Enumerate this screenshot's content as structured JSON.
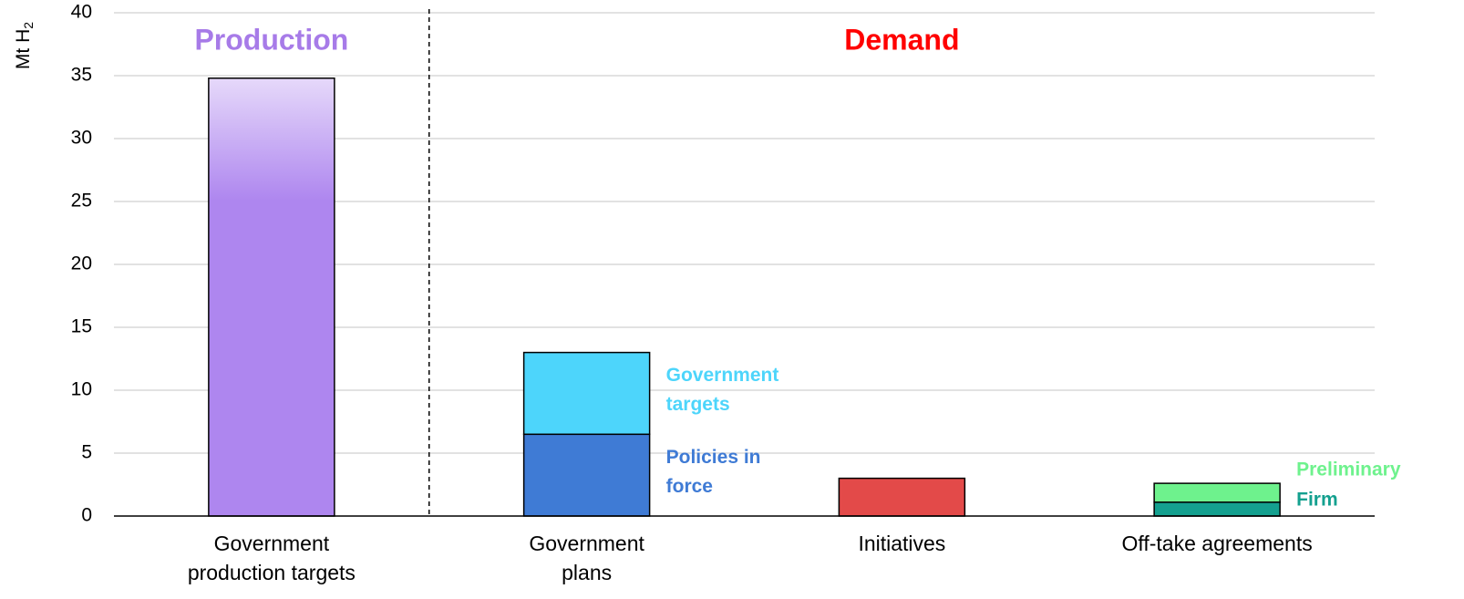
{
  "chart_data": {
    "type": "bar",
    "stacked": true,
    "ylabel": "Mt H",
    "ylabel_subscript": "2",
    "ylim": [
      0,
      40
    ],
    "yticks": [
      "0",
      "5",
      "10",
      "15",
      "20",
      "25",
      "30",
      "35",
      "40"
    ],
    "grid": true,
    "categories": [
      [
        "Government",
        "production targets"
      ],
      [
        "Government",
        "plans"
      ],
      [
        "Initiatives"
      ],
      [
        "Off-take agreements"
      ]
    ],
    "sections": [
      {
        "label": "Production",
        "color": "#a77be8"
      },
      {
        "label": "Demand",
        "color": "#ff0000"
      }
    ],
    "series": [
      {
        "name": "",
        "color": "#ae86ef",
        "values": [
          34.8,
          0,
          0,
          0
        ]
      },
      {
        "name": "Policies in force",
        "label_lines": [
          "Policies in",
          "force"
        ],
        "color": "#3f7bd5",
        "values": [
          0,
          6.5,
          0,
          0
        ]
      },
      {
        "name": "Government targets",
        "label_lines": [
          "Government",
          "targets"
        ],
        "color": "#4dd5fb",
        "values": [
          0,
          6.5,
          0,
          0
        ]
      },
      {
        "name": "",
        "color": "#e34a49",
        "values": [
          0,
          0,
          3.0,
          0
        ]
      },
      {
        "name": "Firm",
        "label_lines": [
          "Firm"
        ],
        "color": "#14a08f",
        "values": [
          0,
          0,
          0,
          1.1
        ]
      },
      {
        "name": "Preliminary",
        "label_lines": [
          "Preliminary"
        ],
        "color": "#6ef28d",
        "values": [
          0,
          0,
          0,
          1.5
        ]
      }
    ]
  }
}
